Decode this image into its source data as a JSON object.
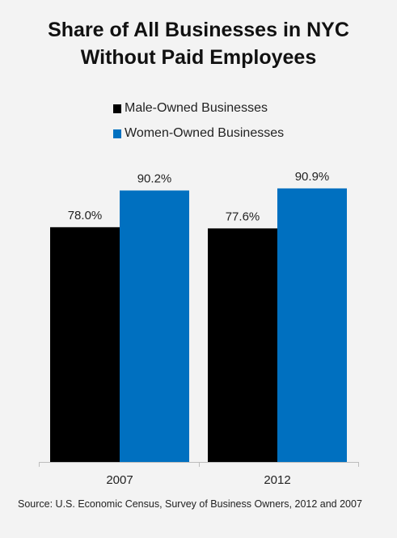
{
  "chart_data": {
    "type": "bar",
    "title_lines": [
      "Share of All Businesses in NYC",
      "Without Paid Employees"
    ],
    "categories": [
      "2007",
      "2012"
    ],
    "series": [
      {
        "name": "Male-Owned Businesses",
        "color": "#000000",
        "values": [
          78.0,
          77.6
        ],
        "labels": [
          "78.0%",
          "77.6%"
        ]
      },
      {
        "name": "Women-Owned Businesses",
        "color": "#0070c0",
        "values": [
          90.2,
          90.9
        ],
        "labels": [
          "90.2%",
          "90.9%"
        ]
      }
    ],
    "ylim": [
      0,
      100
    ],
    "grid": false,
    "legend_position": "top"
  },
  "source": "Source: U.S. Economic Census, Survey of Business Owners, 2012 and 2007"
}
